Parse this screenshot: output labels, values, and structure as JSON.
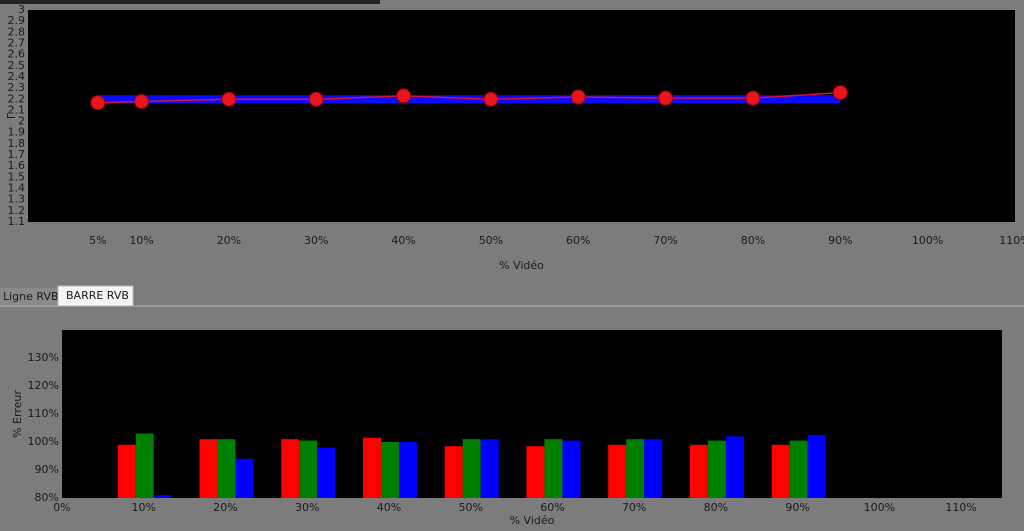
{
  "chart_data": [
    {
      "type": "line",
      "ylabel": "Γ",
      "xlabel": "% Vidéo",
      "x": [
        5,
        10,
        20,
        30,
        40,
        50,
        60,
        70,
        80,
        90
      ],
      "series": [
        {
          "color": "#0a0aff",
          "width": 8,
          "markers": false,
          "values": [
            2.2,
            2.2,
            2.2,
            2.2,
            2.2,
            2.2,
            2.2,
            2.2,
            2.2,
            2.2
          ]
        },
        {
          "color": "#d0143c",
          "width": 1.5,
          "markers": true,
          "values": [
            2.17,
            2.18,
            2.2,
            2.2,
            2.23,
            2.2,
            2.22,
            2.21,
            2.21,
            2.26
          ]
        }
      ],
      "xlim": [
        -3,
        110
      ],
      "ylim": [
        1.1,
        3
      ],
      "xticks": [
        {
          "value": 5,
          "label": "5%"
        },
        {
          "value": 10,
          "label": "10%"
        },
        {
          "value": 20,
          "label": "20%"
        },
        {
          "value": 30,
          "label": "30%"
        },
        {
          "value": 40,
          "label": "40%"
        },
        {
          "value": 50,
          "label": "50%"
        },
        {
          "value": 60,
          "label": "60%"
        },
        {
          "value": 70,
          "label": "70%"
        },
        {
          "value": 80,
          "label": "80%"
        },
        {
          "value": 90,
          "label": "90%"
        },
        {
          "value": 100,
          "label": "100%"
        },
        {
          "value": 110,
          "label": "110%"
        }
      ],
      "yticks": [
        1.1,
        1.2,
        1.3,
        1.4,
        1.5,
        1.6,
        1.7,
        1.8,
        1.9,
        2,
        2.1,
        2.2,
        2.3,
        2.4,
        2.5,
        2.6,
        2.7,
        2.8,
        2.9,
        3
      ]
    },
    {
      "type": "bar",
      "ylabel": "% Erreur",
      "xlabel": "% Vidéo",
      "x": [
        10,
        20,
        30,
        40,
        50,
        60,
        70,
        80,
        90
      ],
      "series": [
        {
          "color": "#ff0000",
          "values": [
            99,
            101,
            101,
            101.5,
            98.5,
            98.5,
            99,
            99,
            99
          ]
        },
        {
          "color": "#008000",
          "values": [
            103,
            101,
            100.5,
            100,
            101,
            101,
            101,
            100.5,
            100.5
          ]
        },
        {
          "color": "#0000ff",
          "values": [
            81,
            94,
            98,
            100,
            101,
            100.5,
            101,
            102,
            102.5
          ]
        }
      ],
      "xlim": [
        0,
        115
      ],
      "ylim": [
        80,
        140
      ],
      "xticks": [
        {
          "value": 0,
          "label": "0%"
        },
        {
          "value": 10,
          "label": "10%"
        },
        {
          "value": 20,
          "label": "20%"
        },
        {
          "value": 30,
          "label": "30%"
        },
        {
          "value": 40,
          "label": "40%"
        },
        {
          "value": 50,
          "label": "50%"
        },
        {
          "value": 60,
          "label": "60%"
        },
        {
          "value": 70,
          "label": "70%"
        },
        {
          "value": 80,
          "label": "80%"
        },
        {
          "value": 90,
          "label": "90%"
        },
        {
          "value": 100,
          "label": "100%"
        },
        {
          "value": 110,
          "label": "110%"
        }
      ],
      "yticks": [
        {
          "value": 80,
          "label": "80%"
        },
        {
          "value": 90,
          "label": "90%"
        },
        {
          "value": 100,
          "label": "100%"
        },
        {
          "value": 110,
          "label": "110%"
        },
        {
          "value": 120,
          "label": "120%"
        },
        {
          "value": 130,
          "label": "130%"
        }
      ]
    }
  ],
  "tabs": [
    "Ligne RVB",
    "BARRE RVB"
  ]
}
